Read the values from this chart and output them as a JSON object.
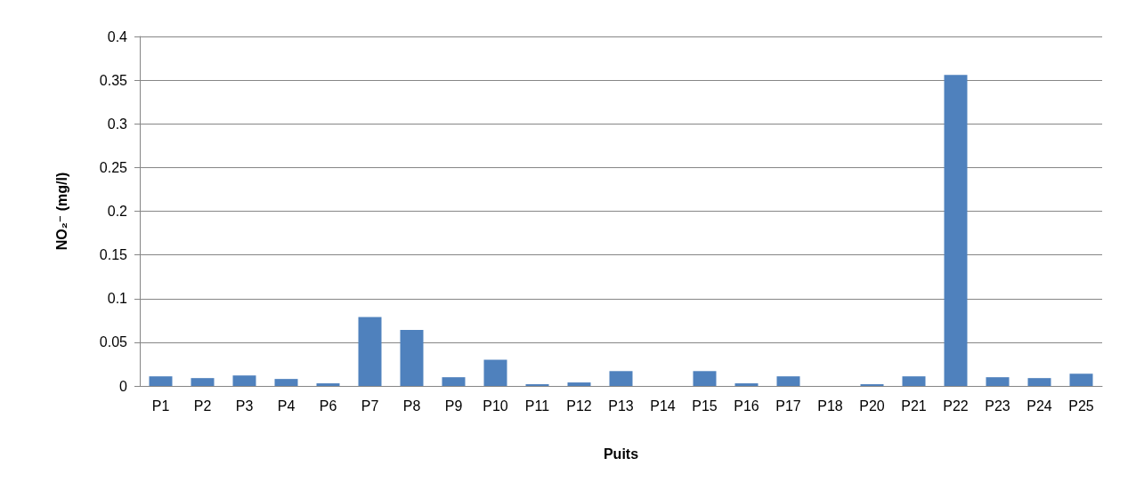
{
  "chart_data": {
    "type": "bar",
    "xlabel": "Puits",
    "ylabel": "NO₂⁻ (mg/l)",
    "categories": [
      "P1",
      "P2",
      "P3",
      "P4",
      "P6",
      "P7",
      "P8",
      "P9",
      "P10",
      "P11",
      "P12",
      "P13",
      "P14",
      "P15",
      "P16",
      "P17",
      "P18",
      "P20",
      "P21",
      "P22",
      "P23",
      "P24",
      "P25"
    ],
    "values": [
      0.011,
      0.009,
      0.012,
      0.008,
      0.003,
      0.079,
      0.064,
      0.01,
      0.03,
      0.002,
      0.004,
      0.017,
      0,
      0.017,
      0.003,
      0.011,
      0,
      0.002,
      0.011,
      0.356,
      0.01,
      0.009,
      0.014
    ],
    "color": "#4f81bd",
    "ylim": [
      0,
      0.4
    ],
    "yticks": [
      0,
      0.05,
      0.1,
      0.15,
      0.2,
      0.25,
      0.3,
      0.35,
      0.4
    ],
    "grid": "y"
  }
}
